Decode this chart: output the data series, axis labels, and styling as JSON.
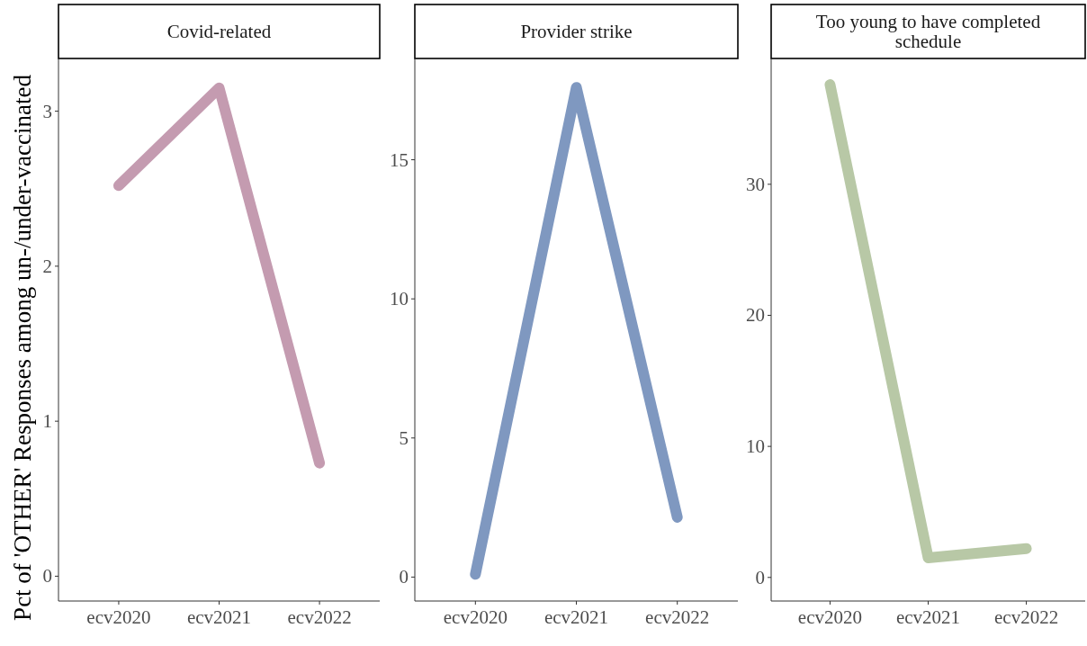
{
  "chart_data": [
    {
      "type": "line",
      "title": "Covid-related",
      "ylabel": "Pct of 'OTHER' Responses among un-/under-vaccinated",
      "categories": [
        "ecv2020",
        "ecv2021",
        "ecv2022"
      ],
      "series": [
        {
          "color": "#c49bb0",
          "values": [
            2.52,
            3.15,
            0.73
          ]
        }
      ],
      "ylim": [
        -0.16,
        3.34
      ],
      "yticks": [
        0,
        1,
        2,
        3
      ]
    },
    {
      "type": "line",
      "title": "Provider strike",
      "categories": [
        "ecv2020",
        "ecv2021",
        "ecv2022"
      ],
      "series": [
        {
          "color": "#7f98c0",
          "values": [
            0.1,
            17.6,
            2.15
          ]
        }
      ],
      "ylim": [
        -0.86,
        18.64
      ],
      "yticks": [
        0,
        5,
        10,
        15
      ]
    },
    {
      "type": "line",
      "title": "Too young to have completed schedule",
      "categories": [
        "ecv2020",
        "ecv2021",
        "ecv2022"
      ],
      "series": [
        {
          "color": "#b8c8a6",
          "values": [
            37.6,
            1.5,
            2.2
          ]
        }
      ],
      "ylim": [
        -1.8,
        39.6
      ],
      "yticks": [
        0,
        10,
        20,
        30
      ]
    }
  ]
}
